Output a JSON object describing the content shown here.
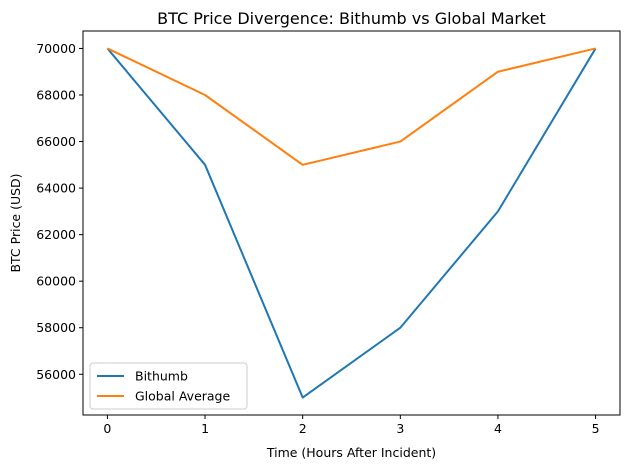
{
  "chart_data": {
    "type": "line",
    "title": "BTC Price Divergence: Bithumb vs Global Market",
    "xlabel": "Time (Hours After Incident)",
    "ylabel": "BTC Price (USD)",
    "x": [
      0,
      1,
      2,
      3,
      4,
      5
    ],
    "xticks": [
      "0",
      "1",
      "2",
      "3",
      "4",
      "5"
    ],
    "yticks": [
      "56000",
      "58000",
      "60000",
      "62000",
      "64000",
      "66000",
      "68000",
      "70000"
    ],
    "xlim": [
      -0.25,
      5.25
    ],
    "ylim": [
      54250,
      70750
    ],
    "grid": false,
    "legend": "lower-left",
    "series": [
      {
        "name": "Bithumb",
        "color": "#1f77b4",
        "values": [
          70000,
          65000,
          55000,
          58000,
          63000,
          70000
        ]
      },
      {
        "name": "Global Average",
        "color": "#ff7f0e",
        "values": [
          70000,
          68000,
          65000,
          66000,
          69000,
          70000
        ]
      }
    ]
  }
}
